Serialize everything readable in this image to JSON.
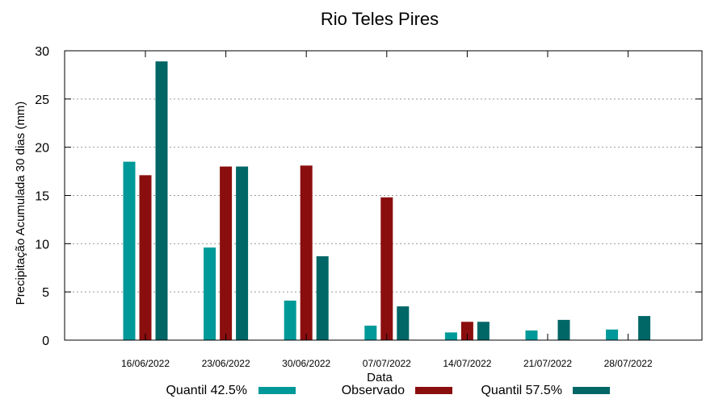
{
  "chart_data": {
    "type": "bar",
    "title": "Rio Teles Pires",
    "xlabel": "Data",
    "ylabel": "Precipitação Acumulada 30 dias (mm)",
    "ylim": [
      0,
      30
    ],
    "yticks": [
      0,
      5,
      10,
      15,
      20,
      25,
      30
    ],
    "grid": true,
    "legend_position": "bottom",
    "categories": [
      "16/06/2022",
      "23/06/2022",
      "30/06/2022",
      "07/07/2022",
      "14/07/2022",
      "21/07/2022",
      "28/07/2022"
    ],
    "series": [
      {
        "name": "Quantil 42.5%",
        "color": "#009999",
        "values": [
          18.5,
          9.6,
          4.1,
          1.5,
          0.8,
          1.0,
          1.1
        ]
      },
      {
        "name": "Observado",
        "color": "#8b0e0e",
        "values": [
          17.1,
          18.0,
          18.1,
          14.8,
          1.9,
          null,
          null
        ]
      },
      {
        "name": "Quantil 57.5%",
        "color": "#006666",
        "values": [
          28.9,
          18.0,
          8.7,
          3.5,
          1.9,
          2.1,
          2.5
        ]
      }
    ]
  }
}
